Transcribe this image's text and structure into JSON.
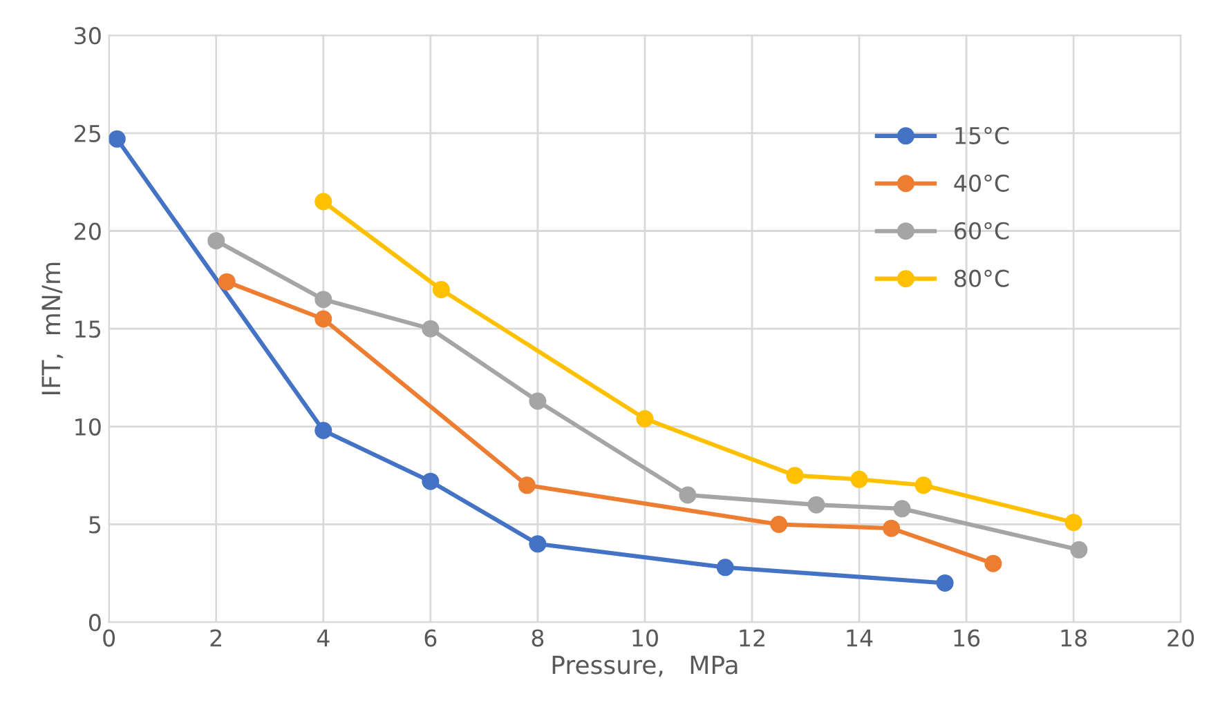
{
  "chart_data": {
    "type": "line",
    "xlabel": "Pressure,   MPa",
    "ylabel": "IFT,  mN/m",
    "xlim": [
      0,
      20
    ],
    "xticks": [
      0,
      2,
      4,
      6,
      8,
      10,
      12,
      14,
      16,
      18,
      20
    ],
    "ylim": [
      0,
      30
    ],
    "yticks": [
      0,
      5,
      10,
      15,
      20,
      25,
      30
    ],
    "grid": true,
    "legend": "top right",
    "marker": "circle",
    "line_style": "solid",
    "series": [
      {
        "name": "15°C",
        "color": "#4472c4",
        "x": [
          0.15,
          4,
          6,
          8,
          11.5,
          15.6
        ],
        "values": [
          24.7,
          9.8,
          7.2,
          4.0,
          2.8,
          2.0
        ]
      },
      {
        "name": "40°C",
        "color": "#ed7d31",
        "x": [
          2.2,
          4,
          7.8,
          12.5,
          14.6,
          16.5
        ],
        "values": [
          17.4,
          15.5,
          7.0,
          5.0,
          4.8,
          3.0
        ]
      },
      {
        "name": "60°C",
        "color": "#a5a5a5",
        "x": [
          2,
          4,
          6,
          8,
          10.8,
          13.2,
          14.8,
          18.1
        ],
        "values": [
          19.5,
          16.5,
          15.0,
          11.3,
          6.5,
          6.0,
          5.8,
          3.7
        ]
      },
      {
        "name": "80°C",
        "color": "#ffc000",
        "x": [
          4,
          6.2,
          10,
          12.8,
          14,
          15.2,
          18
        ],
        "values": [
          21.5,
          17.0,
          10.4,
          7.5,
          7.3,
          7.0,
          5.1
        ]
      }
    ]
  }
}
